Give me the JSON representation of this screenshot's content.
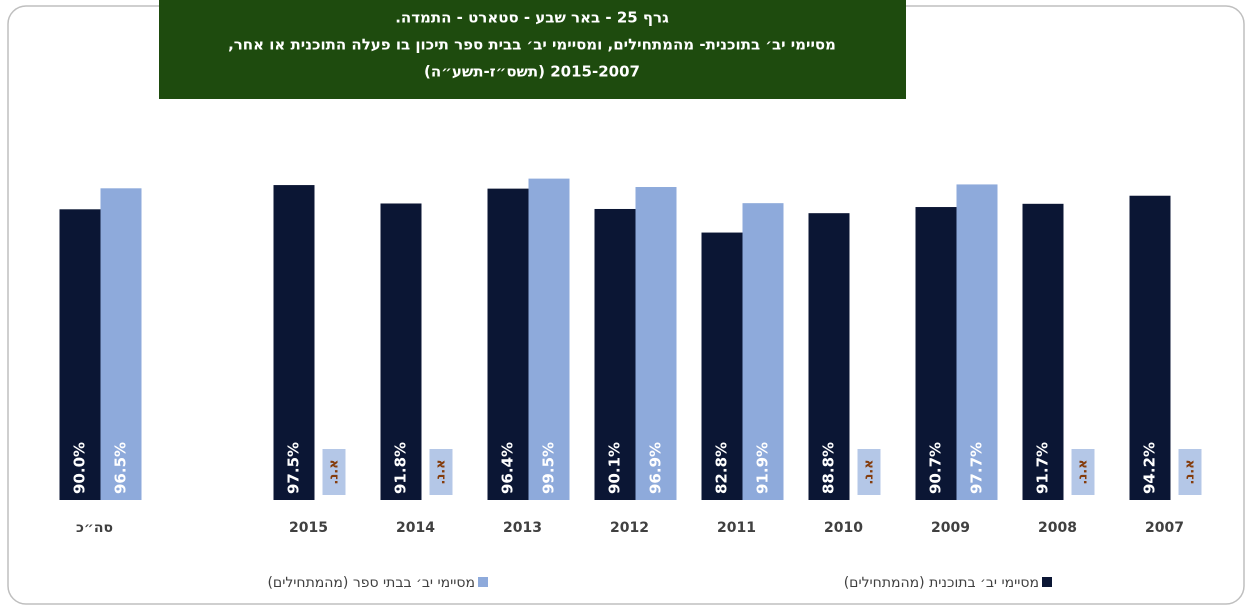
{
  "chart_data": {
    "type": "bar",
    "title": [
      "גרף 25 - באר שבע - סטארט - התמדה.",
      "מסיימי יב׳ בתוכנית- מהמתחילים, ומסיימי יב׳ בבית ספר תיכון בו פעלה התוכנית או אחר,",
      "2015-2007 (תשס״ז-תשע״ה)"
    ],
    "categories": [
      "סה״כ",
      null,
      "2015",
      "2014",
      "2013",
      "2012",
      "2011",
      "2010",
      "2009",
      "2008",
      "2007"
    ],
    "series": [
      {
        "name": "מסיימי יב׳ בתוכנית (מהמתחילים)",
        "color": "#0b1634",
        "values": [
          90.0,
          null,
          97.5,
          91.8,
          96.4,
          90.1,
          82.8,
          88.8,
          90.7,
          91.7,
          94.2
        ],
        "value_labels": [
          "90.0%",
          null,
          "97.5%",
          "91.8%",
          "96.4%",
          "90.1%",
          "82.8%",
          "88.8%",
          "90.7%",
          "91.7%",
          "94.2%"
        ]
      },
      {
        "name": "מסיימי יב׳ בבתי ספר (מהמתחילים)",
        "color": "#8eaadb",
        "values": [
          96.5,
          null,
          null,
          null,
          99.5,
          96.9,
          91.9,
          null,
          97.7,
          null,
          null
        ],
        "value_labels": [
          "96.5%",
          null,
          null,
          null,
          "99.5%",
          "96.9%",
          "91.9%",
          null,
          "97.7%",
          null,
          null
        ]
      }
    ],
    "missing_label": "א.נ.",
    "ylim": [
      0,
      100
    ],
    "legend": "bottom"
  }
}
